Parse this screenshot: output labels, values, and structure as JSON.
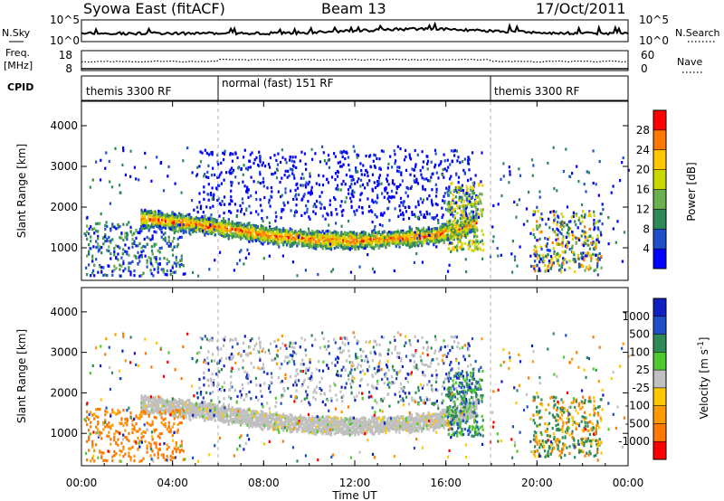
{
  "header": {
    "station": "Syowa East (fitACF)",
    "beam": "Beam 13",
    "date": "17/Oct/2011"
  },
  "side_labels": {
    "nsky": "N.Sky",
    "freq_line1": "Freq.",
    "freq_line2": "[MHz]",
    "cpid": "CPID",
    "nsearch": "N.Search",
    "nave": "Nave"
  },
  "noise_axis": {
    "left_ticks": [
      "10^5",
      "10^0"
    ],
    "right_ticks": [
      "10^5",
      "10^0"
    ]
  },
  "freq_axis": {
    "left_ticks": [
      "18",
      "8"
    ],
    "right_ticks": [
      "60",
      "0"
    ]
  },
  "cpid_modes": [
    {
      "label": "themis 3300 RF",
      "start_hour": 0,
      "end_hour": 6
    },
    {
      "label": "normal (fast) 151 RF",
      "start_hour": 6,
      "end_hour": 18
    },
    {
      "label": "themis 3300 RF",
      "start_hour": 18,
      "end_hour": 24
    }
  ],
  "power_colorbar": {
    "label": "Power [dB]",
    "ticks": [
      "28",
      "24",
      "20",
      "16",
      "12",
      "8",
      "4"
    ],
    "colors": [
      "#0000ff",
      "#2050c8",
      "#2e8b57",
      "#6ab04c",
      "#c8d800",
      "#ffc800",
      "#ff7800",
      "#ff0000"
    ]
  },
  "velocity_colorbar": {
    "label": "Velocity [m s^-1]",
    "ticks": [
      "1000",
      "500",
      "100",
      "25",
      "-25",
      "-100",
      "-500",
      "-1000"
    ],
    "colors": [
      "#ff0000",
      "#ff7800",
      "#ff9a00",
      "#ffc800",
      "#c0c0c0",
      "#4fc92e",
      "#2e8b57",
      "#2050c8",
      "#1020c0"
    ]
  },
  "chart_data": [
    {
      "type": "heatmap",
      "panel": "power",
      "ylabel": "Slant Range [km]",
      "yticks": [
        "1000",
        "2000",
        "3000",
        "4000"
      ],
      "ylim": [
        200,
        4600
      ],
      "xlim_hours": [
        0,
        24
      ],
      "main_echo_band": {
        "x_hours": [
          3.0,
          4.5,
          6.0,
          8.0,
          10.0,
          12.0,
          14.0,
          15.5,
          16.5,
          17.2
        ],
        "y_km": [
          1700,
          1600,
          1500,
          1320,
          1200,
          1180,
          1220,
          1300,
          1450,
          1600
        ],
        "peak_power_db": 24
      }
    },
    {
      "type": "heatmap",
      "panel": "velocity",
      "ylabel": "Slant Range [km]",
      "yticks": [
        "1000",
        "2000",
        "3000",
        "4000"
      ],
      "ylim": [
        200,
        4600
      ],
      "xlim_hours": [
        0,
        24
      ],
      "xlabel": "Time UT",
      "xticks": [
        "00:00",
        "04:00",
        "08:00",
        "12:00",
        "16:00",
        "20:00",
        "00:00"
      ]
    }
  ]
}
